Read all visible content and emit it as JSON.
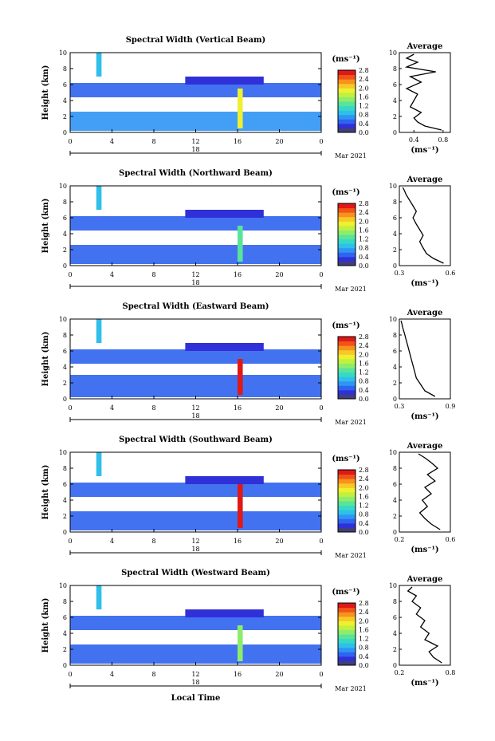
{
  "figure": {
    "xlabel": "Local Time"
  },
  "panels": [
    {
      "title": "Spectral Width (Vertical Beam)",
      "avg_xticks": [
        "0.4",
        "0.8"
      ],
      "avg_xrange": [
        0.2,
        0.9
      ]
    },
    {
      "title": "Spectral Width (Northward Beam)",
      "avg_xticks": [
        "0.3",
        "0.6"
      ],
      "avg_xrange": [
        0.3,
        0.6
      ]
    },
    {
      "title": "Spectral Width (Eastward Beam)",
      "avg_xticks": [
        "0.3",
        "0.9"
      ],
      "avg_xrange": [
        0.3,
        0.9
      ]
    },
    {
      "title": "Spectral Width (Southward Beam)",
      "avg_xticks": [
        "0.2",
        "0.6"
      ],
      "avg_xrange": [
        0.2,
        0.6
      ]
    },
    {
      "title": "Spectral Width (Westward Beam)",
      "avg_xticks": [
        "0.2",
        "0.8"
      ],
      "avg_xrange": [
        0.2,
        0.8
      ]
    }
  ],
  "shared": {
    "xticks": [
      "0",
      "4",
      "8",
      "12",
      "16",
      "20",
      "0"
    ],
    "yticks": [
      "0",
      "2",
      "4",
      "6",
      "8",
      "10"
    ],
    "ylabel": "Height (km)",
    "day_label": "18",
    "date_label": "Mar 2021",
    "cbar_unit": "(ms⁻¹)",
    "cbar_ticks": [
      "0.0",
      "0.4",
      "0.8",
      "1.2",
      "1.6",
      "2.0",
      "2.4",
      "2.8"
    ],
    "avg_title": "Average",
    "avg_unit": "(ms⁻¹)"
  },
  "chart_data": [
    {
      "type": "heatmap",
      "title": "Spectral Width (Vertical Beam)",
      "xlabel": "",
      "ylabel": "Height (km)",
      "xlim": [
        0,
        24
      ],
      "ylim": [
        0,
        10
      ],
      "color_range": [
        0.0,
        2.8
      ],
      "colorbar_label": "(ms⁻¹)",
      "layers": [
        {
          "name": "boundary layer",
          "t": [
            0,
            24
          ],
          "h": [
            0.2,
            2.6
          ],
          "v": 0.6
        },
        {
          "name": "mid layer",
          "t": [
            0,
            24
          ],
          "h": [
            4.4,
            6.2
          ],
          "v": 0.4
        },
        {
          "name": "upper cloud",
          "t": [
            11,
            18.5
          ],
          "h": [
            6.0,
            7.0
          ],
          "v": 0.3
        },
        {
          "name": "rain streak",
          "t": [
            16,
            16.5
          ],
          "h": [
            0.5,
            5.5
          ],
          "v": 1.8
        },
        {
          "name": "fall streak",
          "t": [
            2.5,
            3
          ],
          "h": [
            7,
            10
          ],
          "v": 0.8
        }
      ],
      "profile": {
        "x": [
          0.78,
          0.55,
          0.45,
          0.4,
          0.5,
          0.35,
          0.4,
          0.45,
          0.3,
          0.5,
          0.35,
          0.7,
          0.3,
          0.45,
          0.3,
          0.4
        ],
        "h": [
          0.3,
          0.8,
          1.3,
          1.8,
          2.5,
          3.2,
          4.0,
          4.8,
          5.5,
          6.3,
          7.0,
          7.6,
          8.2,
          8.8,
          9.3,
          9.8
        ]
      }
    },
    {
      "type": "heatmap",
      "title": "Spectral Width (Northward Beam)",
      "xlabel": "",
      "ylabel": "Height (km)",
      "xlim": [
        0,
        24
      ],
      "ylim": [
        0,
        10
      ],
      "color_range": [
        0.0,
        2.8
      ],
      "colorbar_label": "(ms⁻¹)",
      "layers": [
        {
          "name": "boundary layer",
          "t": [
            0,
            24
          ],
          "h": [
            0.2,
            2.6
          ],
          "v": 0.5
        },
        {
          "name": "mid layer",
          "t": [
            0,
            24
          ],
          "h": [
            4.4,
            6.2
          ],
          "v": 0.4
        },
        {
          "name": "upper cloud",
          "t": [
            11,
            18.5
          ],
          "h": [
            6.0,
            7.0
          ],
          "v": 0.3
        },
        {
          "name": "rain streak",
          "t": [
            16,
            16.5
          ],
          "h": [
            0.5,
            5.0
          ],
          "v": 1.2
        },
        {
          "name": "fall streak",
          "t": [
            2.5,
            3
          ],
          "h": [
            7,
            10
          ],
          "v": 0.8
        }
      ],
      "profile": {
        "x": [
          0.56,
          0.5,
          0.46,
          0.44,
          0.42,
          0.44,
          0.42,
          0.4,
          0.38,
          0.4,
          0.38,
          0.36,
          0.34,
          0.33,
          0.32
        ],
        "h": [
          0.3,
          0.9,
          1.5,
          2.2,
          3.0,
          3.8,
          4.5,
          5.2,
          6.0,
          6.8,
          7.5,
          8.2,
          8.9,
          9.4,
          9.8
        ]
      }
    },
    {
      "type": "heatmap",
      "title": "Spectral Width (Eastward Beam)",
      "xlabel": "",
      "ylabel": "Height (km)",
      "xlim": [
        0,
        24
      ],
      "ylim": [
        0,
        10
      ],
      "color_range": [
        0.0,
        2.8
      ],
      "colorbar_label": "(ms⁻¹)",
      "layers": [
        {
          "name": "boundary layer",
          "t": [
            0,
            24
          ],
          "h": [
            0.2,
            3.0
          ],
          "v": 0.5
        },
        {
          "name": "mid layer",
          "t": [
            0,
            24
          ],
          "h": [
            4.4,
            6.2
          ],
          "v": 0.4
        },
        {
          "name": "upper cloud",
          "t": [
            11,
            18.5
          ],
          "h": [
            6.0,
            7.0
          ],
          "v": 0.3
        },
        {
          "name": "rain streak",
          "t": [
            16,
            16.5
          ],
          "h": [
            0.5,
            5.0
          ],
          "v": 2.6
        },
        {
          "name": "fall streak",
          "t": [
            2.5,
            3
          ],
          "h": [
            7,
            10
          ],
          "v": 0.8
        }
      ],
      "profile": {
        "x": [
          0.72,
          0.6,
          0.55,
          0.5,
          0.48,
          0.46,
          0.44,
          0.42,
          0.4,
          0.38,
          0.36,
          0.34,
          0.33,
          0.32
        ],
        "h": [
          0.3,
          1.0,
          1.8,
          2.6,
          3.4,
          4.2,
          5.0,
          5.8,
          6.6,
          7.4,
          8.2,
          8.9,
          9.4,
          9.8
        ]
      }
    },
    {
      "type": "heatmap",
      "title": "Spectral Width (Southward Beam)",
      "xlabel": "",
      "ylabel": "Height (km)",
      "xlim": [
        0,
        24
      ],
      "ylim": [
        0,
        10
      ],
      "color_range": [
        0.0,
        2.8
      ],
      "colorbar_label": "(ms⁻¹)",
      "layers": [
        {
          "name": "boundary layer",
          "t": [
            0,
            24
          ],
          "h": [
            0.2,
            2.6
          ],
          "v": 0.5
        },
        {
          "name": "mid layer",
          "t": [
            0,
            24
          ],
          "h": [
            4.4,
            6.2
          ],
          "v": 0.4
        },
        {
          "name": "upper cloud",
          "t": [
            11,
            18.5
          ],
          "h": [
            6.0,
            7.0
          ],
          "v": 0.3
        },
        {
          "name": "rain streak",
          "t": [
            16,
            16.5
          ],
          "h": [
            0.5,
            6.0
          ],
          "v": 2.7
        },
        {
          "name": "fall streak",
          "t": [
            2.5,
            3
          ],
          "h": [
            7,
            10
          ],
          "v": 0.8
        }
      ],
      "profile": {
        "x": [
          0.52,
          0.45,
          0.4,
          0.36,
          0.42,
          0.38,
          0.45,
          0.4,
          0.48,
          0.42,
          0.5,
          0.45,
          0.4,
          0.35
        ],
        "h": [
          0.3,
          1.0,
          1.7,
          2.4,
          3.2,
          4.0,
          4.8,
          5.6,
          6.4,
          7.2,
          8.0,
          8.7,
          9.3,
          9.8
        ]
      }
    },
    {
      "type": "heatmap",
      "title": "Spectral Width (Westward Beam)",
      "xlabel": "Local Time",
      "ylabel": "Height (km)",
      "xlim": [
        0,
        24
      ],
      "ylim": [
        0,
        10
      ],
      "color_range": [
        0.0,
        2.8
      ],
      "colorbar_label": "(ms⁻¹)",
      "layers": [
        {
          "name": "boundary layer",
          "t": [
            0,
            24
          ],
          "h": [
            0.2,
            2.6
          ],
          "v": 0.5
        },
        {
          "name": "mid layer",
          "t": [
            0,
            24
          ],
          "h": [
            4.4,
            6.2
          ],
          "v": 0.4
        },
        {
          "name": "upper cloud",
          "t": [
            11,
            18.5
          ],
          "h": [
            6.0,
            7.0
          ],
          "v": 0.3
        },
        {
          "name": "rain streak",
          "t": [
            16,
            16.5
          ],
          "h": [
            0.5,
            5.0
          ],
          "v": 1.4
        },
        {
          "name": "fall streak",
          "t": [
            2.5,
            3
          ],
          "h": [
            7,
            10
          ],
          "v": 0.8
        }
      ],
      "profile": {
        "x": [
          0.7,
          0.6,
          0.55,
          0.65,
          0.5,
          0.55,
          0.45,
          0.5,
          0.4,
          0.45,
          0.35,
          0.4,
          0.3,
          0.35
        ],
        "h": [
          0.3,
          1.0,
          1.7,
          2.4,
          3.2,
          4.0,
          4.8,
          5.6,
          6.4,
          7.2,
          8.0,
          8.7,
          9.3,
          9.8
        ]
      }
    }
  ]
}
